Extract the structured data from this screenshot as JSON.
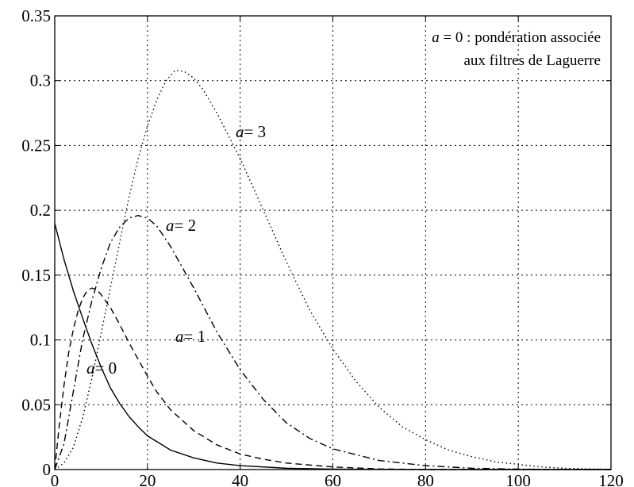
{
  "chart_data": {
    "type": "line",
    "xlim": [
      0,
      120
    ],
    "ylim": [
      0,
      0.35
    ],
    "grid": true,
    "x_ticks": [
      0,
      20,
      40,
      60,
      80,
      100,
      120
    ],
    "y_ticks": [
      0,
      0.05,
      0.1,
      0.15,
      0.2,
      0.25,
      0.3,
      0.35
    ],
    "x_tick_labels": [
      "0",
      "20",
      "40",
      "60",
      "80",
      "100",
      "120"
    ],
    "y_tick_labels": [
      "0",
      "0.05",
      "0.1",
      "0.15",
      "0.2",
      "0.25",
      "0.3",
      "0.35"
    ],
    "annotation": {
      "italic_part": "a",
      "line1": " = 0 : pondération associée",
      "line2": "aux filtres de Laguerre"
    },
    "series": [
      {
        "label": "= 0",
        "style": "solid",
        "points": [
          [
            0,
            0.19
          ],
          [
            2,
            0.162
          ],
          [
            4,
            0.138
          ],
          [
            6,
            0.117
          ],
          [
            8,
            0.097
          ],
          [
            10,
            0.079
          ],
          [
            12,
            0.063
          ],
          [
            14,
            0.051
          ],
          [
            16,
            0.041
          ],
          [
            18,
            0.033
          ],
          [
            20,
            0.026
          ],
          [
            25,
            0.015
          ],
          [
            30,
            0.009
          ],
          [
            35,
            0.005
          ],
          [
            40,
            0.003
          ],
          [
            50,
            0.001
          ],
          [
            60,
            0.0003
          ],
          [
            80,
            0
          ],
          [
            120,
            0
          ]
        ]
      },
      {
        "label": "= 1",
        "style": "dashed",
        "points": [
          [
            0,
            0
          ],
          [
            1,
            0.035
          ],
          [
            2,
            0.065
          ],
          [
            3,
            0.09
          ],
          [
            4,
            0.108
          ],
          [
            5,
            0.122
          ],
          [
            6,
            0.132
          ],
          [
            7,
            0.138
          ],
          [
            8,
            0.14
          ],
          [
            9,
            0.139
          ],
          [
            10,
            0.135
          ],
          [
            12,
            0.125
          ],
          [
            14,
            0.112
          ],
          [
            16,
            0.098
          ],
          [
            18,
            0.085
          ],
          [
            20,
            0.072
          ],
          [
            22,
            0.06
          ],
          [
            25,
            0.046
          ],
          [
            30,
            0.03
          ],
          [
            35,
            0.019
          ],
          [
            40,
            0.012
          ],
          [
            45,
            0.008
          ],
          [
            50,
            0.005
          ],
          [
            60,
            0.002
          ],
          [
            70,
            0.0005
          ],
          [
            80,
            0
          ],
          [
            120,
            0
          ]
        ]
      },
      {
        "label": "= 2",
        "style": "dashdot",
        "points": [
          [
            0,
            0
          ],
          [
            2,
            0.02
          ],
          [
            4,
            0.06
          ],
          [
            6,
            0.1
          ],
          [
            8,
            0.13
          ],
          [
            10,
            0.155
          ],
          [
            12,
            0.175
          ],
          [
            14,
            0.187
          ],
          [
            16,
            0.194
          ],
          [
            18,
            0.196
          ],
          [
            20,
            0.194
          ],
          [
            22,
            0.188
          ],
          [
            25,
            0.172
          ],
          [
            30,
            0.14
          ],
          [
            35,
            0.106
          ],
          [
            40,
            0.077
          ],
          [
            45,
            0.054
          ],
          [
            50,
            0.036
          ],
          [
            55,
            0.024
          ],
          [
            60,
            0.016
          ],
          [
            70,
            0.007
          ],
          [
            80,
            0.003
          ],
          [
            90,
            0.001
          ],
          [
            100,
            0.0003
          ],
          [
            120,
            0
          ]
        ]
      },
      {
        "label": "= 3",
        "style": "dotted",
        "points": [
          [
            0,
            0
          ],
          [
            2,
            0.005
          ],
          [
            4,
            0.017
          ],
          [
            6,
            0.04
          ],
          [
            8,
            0.07
          ],
          [
            10,
            0.105
          ],
          [
            12,
            0.14
          ],
          [
            14,
            0.175
          ],
          [
            16,
            0.21
          ],
          [
            18,
            0.24
          ],
          [
            20,
            0.265
          ],
          [
            22,
            0.285
          ],
          [
            24,
            0.3
          ],
          [
            26,
            0.308
          ],
          [
            28,
            0.307
          ],
          [
            30,
            0.302
          ],
          [
            32,
            0.293
          ],
          [
            35,
            0.275
          ],
          [
            40,
            0.24
          ],
          [
            45,
            0.2
          ],
          [
            50,
            0.16
          ],
          [
            55,
            0.123
          ],
          [
            60,
            0.093
          ],
          [
            65,
            0.068
          ],
          [
            70,
            0.048
          ],
          [
            75,
            0.033
          ],
          [
            80,
            0.023
          ],
          [
            85,
            0.015
          ],
          [
            90,
            0.01
          ],
          [
            95,
            0.006
          ],
          [
            100,
            0.004
          ],
          [
            105,
            0.002
          ],
          [
            110,
            0.001
          ],
          [
            115,
            0.0005
          ],
          [
            120,
            0.0002
          ]
        ]
      }
    ]
  }
}
